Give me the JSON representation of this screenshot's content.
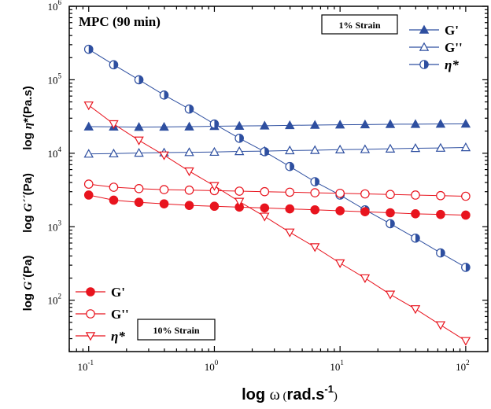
{
  "chart_data": {
    "type": "line",
    "title": "MPC (90 min)",
    "x_scale": "log",
    "y_scale": "log",
    "xlim": [
      0.07,
      150
    ],
    "ylim": [
      20,
      1000000
    ],
    "x_ticks": [
      {
        "base": "10",
        "exp": "-1",
        "value": 0.1
      },
      {
        "base": "10",
        "exp": "0",
        "value": 1
      },
      {
        "base": "10",
        "exp": "1",
        "value": 10
      },
      {
        "base": "10",
        "exp": "2",
        "value": 100
      }
    ],
    "y_ticks": [
      {
        "base": "10",
        "exp": "2",
        "value": 100
      },
      {
        "base": "10",
        "exp": "3",
        "value": 1000
      },
      {
        "base": "10",
        "exp": "4",
        "value": 10000
      },
      {
        "base": "10",
        "exp": "5",
        "value": 100000
      },
      {
        "base": "10",
        "exp": "6",
        "value": 1000000
      }
    ],
    "xlabel": {
      "pre": "log ",
      "omega": "ω",
      "unit_open": " (",
      "unit": "rad.s",
      "exp": "-1",
      "unit_close": ")"
    },
    "ylabels": [
      {
        "pre": "log ",
        "sym": "η",
        "post": "*(Pa.s)"
      },
      {
        "pre": "log ",
        "sym": "G´´",
        "post": "(Pa)"
      },
      {
        "pre": "log ",
        "sym": "G´",
        "post": "(Pa)"
      }
    ],
    "x": [
      0.1,
      0.158,
      0.251,
      0.398,
      0.631,
      1.0,
      1.58,
      2.51,
      3.98,
      6.31,
      10.0,
      15.8,
      25.1,
      39.8,
      63.1,
      100.0
    ],
    "groups": [
      {
        "label": "1% Strain",
        "series": [
          {
            "name": "G'",
            "color": "#2e4fa0",
            "marker": "triangle-filled",
            "values": [
              23000,
              22900,
              22700,
              22800,
              23000,
              23300,
              23500,
              23700,
              24000,
              24200,
              24400,
              24600,
              24800,
              24900,
              25000,
              25100
            ]
          },
          {
            "name": "G''",
            "color": "#2e4fa0",
            "marker": "triangle-open",
            "values": [
              9800,
              9900,
              10100,
              10200,
              10300,
              10400,
              10600,
              10700,
              10900,
              11000,
              11200,
              11300,
              11500,
              11700,
              11800,
              12000
            ]
          },
          {
            "name": "η*",
            "color": "#2e4fa0",
            "marker": "circle-half",
            "values": [
              260000,
              160000,
              100000,
              62000,
              40000,
              25000,
              16000,
              10500,
              6600,
              4100,
              2700,
              1700,
              1100,
              700,
              440,
              280
            ]
          }
        ]
      },
      {
        "label": "10% Strain",
        "series": [
          {
            "name": "G'",
            "color": "#e8141e",
            "marker": "circle-filled",
            "values": [
              2700,
              2300,
              2150,
              2050,
              1950,
              1900,
              1850,
              1800,
              1750,
              1700,
              1650,
              1600,
              1550,
              1500,
              1470,
              1440
            ]
          },
          {
            "name": "G''",
            "color": "#e8141e",
            "marker": "circle-open",
            "values": [
              3800,
              3450,
              3300,
              3200,
              3150,
              3100,
              3050,
              3000,
              2950,
              2900,
              2850,
              2800,
              2750,
              2700,
              2650,
              2600
            ]
          },
          {
            "name": "η*",
            "color": "#e8141e",
            "marker": "triangle-down-open",
            "values": [
              45000,
              25000,
              15000,
              9400,
              5700,
              3600,
              2200,
              1380,
              840,
              530,
              320,
              200,
              120,
              76,
              46,
              28
            ]
          }
        ]
      }
    ]
  }
}
